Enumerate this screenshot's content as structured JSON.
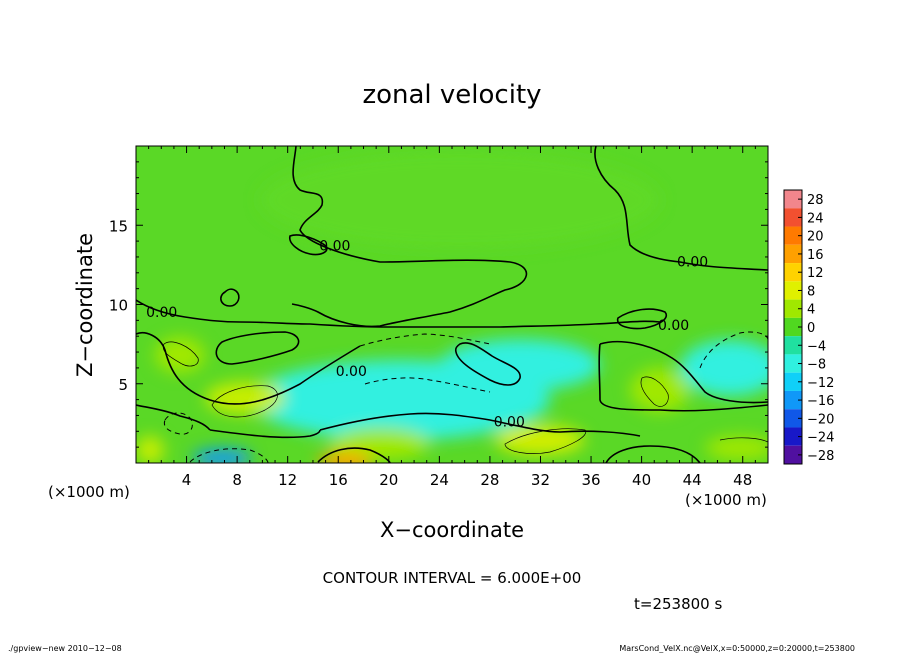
{
  "chart_data": {
    "type": "heatmap",
    "title": "zonal velocity",
    "xlabel": "X−coordinate",
    "ylabel": "Z−coordinate",
    "x_unit": "(×1000 m)",
    "y_unit": "(×1000 m)",
    "xlim": [
      0,
      50
    ],
    "ylim": [
      0,
      20
    ],
    "x_ticks": [
      4,
      8,
      12,
      16,
      20,
      24,
      28,
      32,
      36,
      40,
      44,
      48
    ],
    "y_ticks": [
      5,
      10,
      15
    ],
    "colorbar": {
      "levels": [
        28,
        24,
        20,
        16,
        12,
        8,
        4,
        0,
        -4,
        -8,
        -12,
        -16,
        -20,
        -24,
        -28
      ],
      "level_labels": [
        "28",
        "24",
        "20",
        "16",
        "12",
        "8",
        "4",
        "0",
        "−4",
        "−8",
        "−12",
        "−16",
        "−20",
        "−24",
        "−28"
      ],
      "colors": [
        "#f2868c",
        "#f25030",
        "#ff7a00",
        "#ffa000",
        "#ffd200",
        "#e0f000",
        "#a0e800",
        "#50d820",
        "#20e0a0",
        "#30f0e0",
        "#10d0f8",
        "#1098f8",
        "#1058e8",
        "#1818c8",
        "#5010a0"
      ]
    },
    "contour_labels": [
      {
        "text": "0.00",
        "x": 14.5,
        "y": 13.4
      },
      {
        "text": "0.00",
        "x": 0.8,
        "y": 9.2
      },
      {
        "text": "0.00",
        "x": 15.8,
        "y": 5.5
      },
      {
        "text": "0.00",
        "x": 42.8,
        "y": 12.4
      },
      {
        "text": "0.00",
        "x": 41.3,
        "y": 8.4
      },
      {
        "text": "0.00",
        "x": 28.3,
        "y": 2.3
      }
    ],
    "contour_interval_text": "CONTOUR INTERVAL = 6.000E+00",
    "time_text": "t=253800 s"
  },
  "footer": {
    "left": "./gpview−new   2010−12−08",
    "right": "MarsCond_VelX.nc@VelX,x=0:50000,z=0:20000,t=253800"
  }
}
